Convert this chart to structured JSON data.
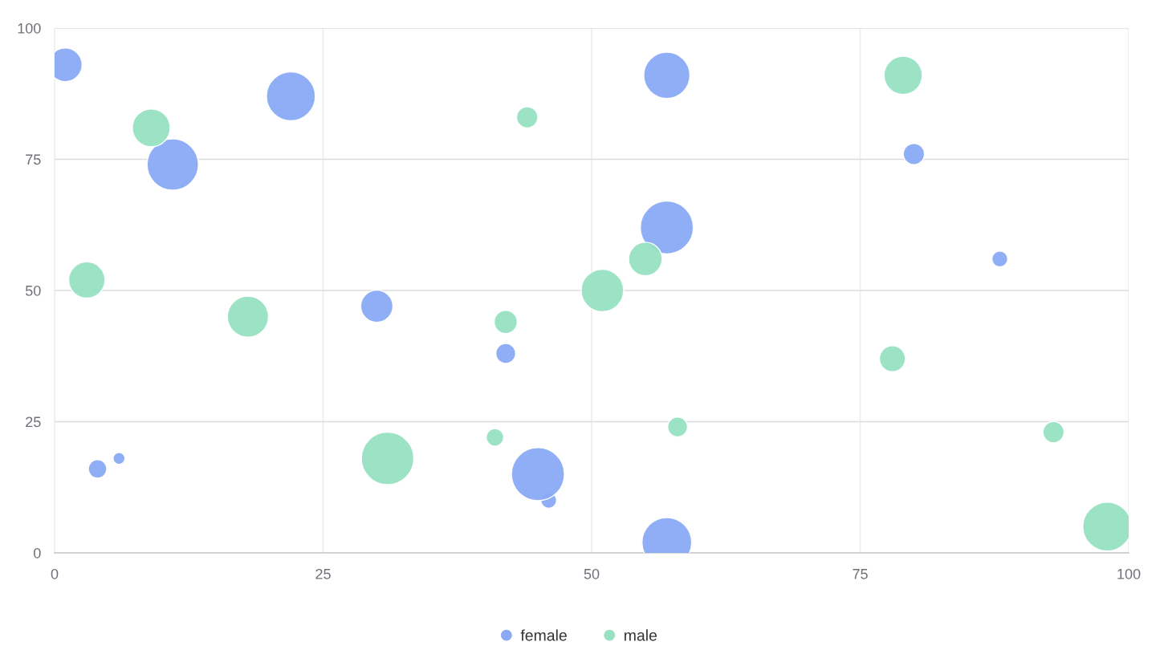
{
  "chart_data": {
    "type": "bubble",
    "series": [
      {
        "name": "female",
        "color": "#8aaaf5",
        "x": [
          1,
          22,
          11,
          57,
          80,
          57,
          88,
          30,
          42,
          4,
          6,
          46,
          45,
          57
        ],
        "values": [
          93,
          87,
          74,
          91,
          76,
          62,
          56,
          47,
          38,
          16,
          18,
          10,
          15,
          2
        ],
        "sizes": [
          0.4,
          0.85,
          0.94,
          0.76,
          0.16,
          1,
          0.09,
          0.37,
          0.14,
          0.12,
          0.05,
          0.09,
          1,
          0.88
        ]
      },
      {
        "name": "male",
        "color": "#97e2c2",
        "x": [
          9,
          44,
          79,
          3,
          18,
          42,
          51,
          55,
          78,
          41,
          31,
          58,
          93,
          98
        ],
        "values": [
          81,
          83,
          91,
          52,
          45,
          44,
          50,
          56,
          37,
          22,
          18,
          24,
          23,
          5
        ],
        "sizes": [
          0.51,
          0.16,
          0.52,
          0.47,
          0.6,
          0.19,
          0.64,
          0.4,
          0.24,
          0.11,
          0.98,
          0.14,
          0.16,
          0.85
        ]
      }
    ],
    "xlim": [
      0,
      100
    ],
    "ylim": [
      0,
      100
    ],
    "xticks": [
      0,
      25,
      50,
      75,
      100
    ],
    "yticks": [
      0,
      25,
      50,
      75,
      100
    ],
    "grid": true,
    "legend": "bottom",
    "marker": "circle"
  }
}
